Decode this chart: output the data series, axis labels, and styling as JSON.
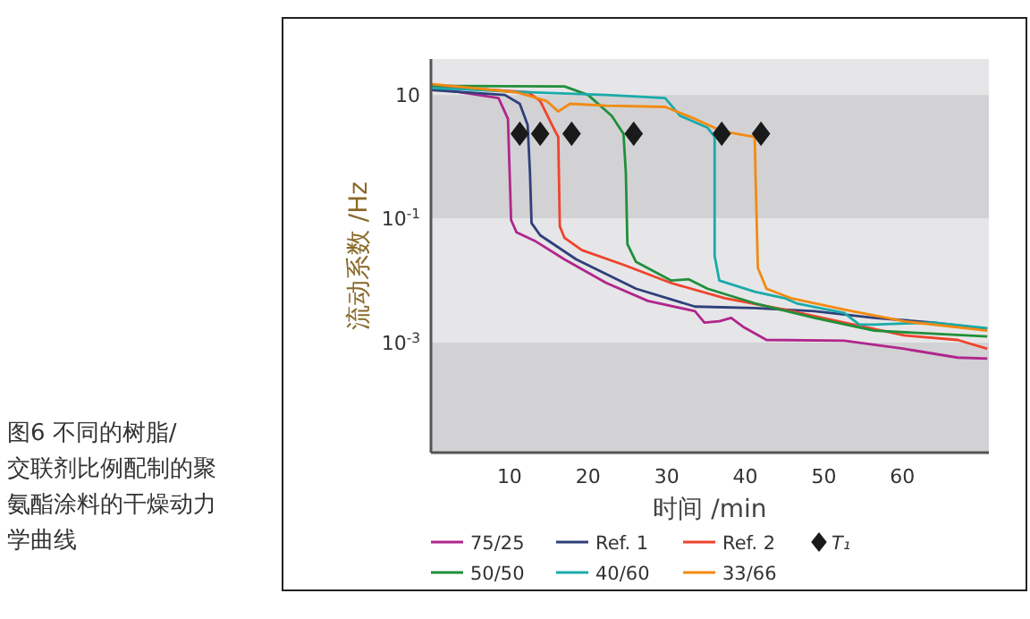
{
  "chart_data": {
    "type": "line",
    "xlabel": "时间 /min",
    "ylabel": "流动系数 /Hz",
    "log": "y",
    "legend": "bottom",
    "xlim": [
      0,
      71
    ],
    "ylim": [
      1.66e-05,
      38
    ],
    "xticks": [
      10,
      20,
      30,
      40,
      50,
      60
    ],
    "yticks": [
      10,
      {
        "value": 0.1,
        "label": "10$^{-1}$"
      },
      {
        "value": 0.001,
        "label": "10$^{-3}$"
      }
    ],
    "bands": [
      {
        "axis": "y",
        "from": 10,
        "to": 38,
        "color": "#e6e6e8"
      },
      {
        "axis": "y",
        "from": 0.1,
        "to": 10,
        "color": "#d2d2d4"
      },
      {
        "axis": "y",
        "from": 0.001,
        "to": 0.1,
        "color": "#e6e6e8"
      },
      {
        "axis": "y",
        "from": 1.66e-05,
        "to": 0.001,
        "color": "#d2d2d4"
      }
    ],
    "annotations": [
      "图6 不同的树脂/交联剂比例配制的聚氨酯涂料的干燥动力学曲线"
    ],
    "series": [
      {
        "name": "75/25",
        "color": "#b0268c",
        "x": [
          0,
          8.6,
          9.8,
          10.2,
          10.9,
          13.2,
          17,
          22.3,
          27.6,
          33.6,
          34.8,
          36.7,
          38.2,
          39.7,
          42.7,
          52.6,
          60.2,
          67,
          70.8
        ],
        "values": [
          13,
          8.9,
          4.1,
          0.095,
          0.06,
          0.044,
          0.022,
          0.0092,
          0.0047,
          0.0032,
          0.0021,
          0.0022,
          0.0025,
          0.0018,
          0.0011,
          0.00107,
          0.00079,
          0.00057,
          0.00055
        ]
      },
      {
        "name": "Ref. 1",
        "color": "#2f3f7a",
        "x": [
          0,
          9.4,
          11.3,
          12.3,
          12.6,
          12.8,
          13.9,
          18.5,
          26.1,
          33.6,
          41.2,
          48.8,
          56.4,
          63.9,
          70.8
        ],
        "values": [
          12,
          10,
          7.2,
          3.3,
          0.56,
          0.085,
          0.054,
          0.022,
          0.0074,
          0.0038,
          0.0036,
          0.0032,
          0.0025,
          0.0021,
          0.00166
        ]
      },
      {
        "name": "Ref. 2",
        "color": "#f0432c",
        "x": [
          0,
          12.4,
          13.9,
          15.8,
          16.2,
          16.4,
          17,
          19.2,
          24.5,
          30.6,
          37.4,
          45,
          52.6,
          60.2,
          67,
          70.8
        ],
        "values": [
          14,
          11,
          8,
          2.6,
          2.1,
          0.075,
          0.049,
          0.031,
          0.018,
          0.0091,
          0.0052,
          0.0034,
          0.0021,
          0.0013,
          0.0011,
          0.00079
        ]
      },
      {
        "name": "50/50",
        "color": "#1f8f3a",
        "x": [
          0,
          17,
          20,
          23,
          24.5,
          24.8,
          25,
          26.1,
          30.6,
          32.8,
          35.2,
          41.2,
          48.8,
          56.4,
          70.8
        ],
        "values": [
          14,
          13.7,
          10,
          4.6,
          2.36,
          0.56,
          0.039,
          0.02,
          0.01,
          0.0105,
          0.0074,
          0.0043,
          0.0025,
          0.00155,
          0.00125
        ]
      },
      {
        "name": "40/60",
        "color": "#1aaaaa",
        "x": [
          0,
          10.9,
          22.3,
          29.8,
          31.7,
          35.2,
          36.1,
          36.1,
          36.1,
          36.7,
          41.2,
          45,
          46.5,
          52.6,
          54.5,
          56.4,
          63.9,
          70.8
        ],
        "values": [
          13,
          11.2,
          10,
          8.9,
          4.6,
          2.95,
          2.1,
          0.56,
          0.025,
          0.01,
          0.0066,
          0.0052,
          0.0043,
          0.003,
          0.00195,
          0.00195,
          0.0021,
          0.0017
        ]
      },
      {
        "name": "33/66",
        "color": "#f28a12",
        "x": [
          0,
          10.9,
          14.7,
          16.2,
          17.7,
          22.3,
          29.8,
          33.6,
          37,
          41.2,
          41.3,
          41.6,
          42.7,
          45.8,
          52.6,
          60.2,
          70.8
        ],
        "values": [
          15,
          11,
          8,
          5.4,
          7.2,
          6.7,
          6.4,
          4.1,
          2.6,
          2.1,
          0.56,
          0.016,
          0.0074,
          0.0052,
          0.0034,
          0.0022,
          0.00155
        ]
      },
      {
        "name": "T₁",
        "type": "scatter",
        "marker": "diamond",
        "color": "#1a1a1a",
        "x": [
          11.3,
          13.9,
          17.9,
          25.8,
          37,
          42
        ],
        "values": [
          2.36,
          2.36,
          2.36,
          2.36,
          2.36,
          2.36
        ]
      }
    ]
  }
}
